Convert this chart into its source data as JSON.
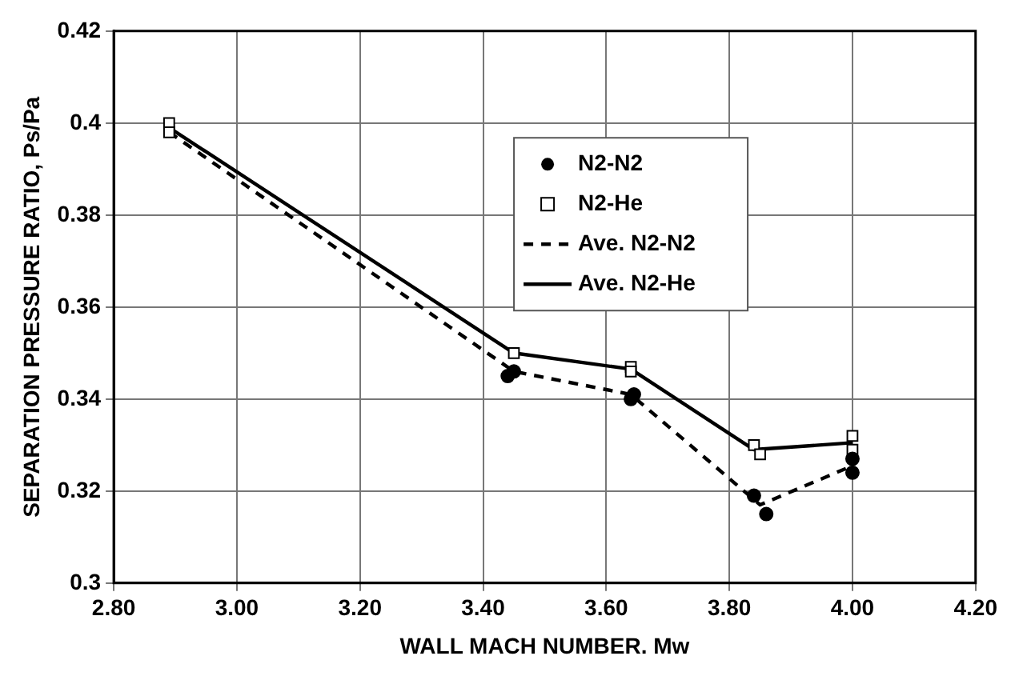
{
  "chart_data": {
    "type": "scatter",
    "xlabel": "WALL MACH NUMBER. Mw",
    "ylabel": "SEPARATION PRESSURE RATIO, Ps/Pa",
    "xlim": [
      2.8,
      4.2
    ],
    "xticks": [
      {
        "value": 2.8,
        "label": "2.80"
      },
      {
        "value": 3.0,
        "label": "3.00"
      },
      {
        "value": 3.2,
        "label": "3.20"
      },
      {
        "value": 3.4,
        "label": "3.40"
      },
      {
        "value": 3.6,
        "label": "3.60"
      },
      {
        "value": 3.8,
        "label": "3.80"
      },
      {
        "value": 4.0,
        "label": "4.00"
      },
      {
        "value": 4.2,
        "label": "4.20"
      }
    ],
    "ylim": [
      0.3,
      0.42
    ],
    "yticks": [
      0.3,
      0.32,
      0.34,
      0.36,
      0.38,
      0.4,
      0.42
    ],
    "grid": true,
    "legend": "top right",
    "series": [
      {
        "name": "N2-N2",
        "type": "scatter",
        "marker": "circle",
        "color": "#000000",
        "x": [
          3.44,
          3.45,
          3.64,
          3.645,
          3.84,
          3.86,
          4.0,
          4.0
        ],
        "values": [
          0.345,
          0.346,
          0.34,
          0.341,
          0.319,
          0.315,
          0.327,
          0.324
        ]
      },
      {
        "name": "N2-He",
        "type": "scatter",
        "marker": "square",
        "color": "#000000",
        "x": [
          2.89,
          2.89,
          3.45,
          3.64,
          3.64,
          3.84,
          3.85,
          4.0,
          4.0
        ],
        "values": [
          0.4,
          0.398,
          0.35,
          0.347,
          0.346,
          0.33,
          0.328,
          0.332,
          0.329
        ]
      },
      {
        "name": "Ave. N2-N2",
        "type": "line",
        "marker": "none",
        "line_style": "dashed",
        "color": "#000000",
        "x": [
          2.89,
          3.45,
          3.64,
          3.85,
          4.0
        ],
        "values": [
          0.398,
          0.346,
          0.341,
          0.317,
          0.3255
        ]
      },
      {
        "name": "Ave. N2-He",
        "type": "line",
        "marker": "none",
        "line_style": "solid",
        "color": "#000000",
        "x": [
          2.89,
          3.45,
          3.64,
          3.84,
          4.0
        ],
        "values": [
          0.399,
          0.35,
          0.3465,
          0.329,
          0.3305
        ]
      }
    ]
  }
}
